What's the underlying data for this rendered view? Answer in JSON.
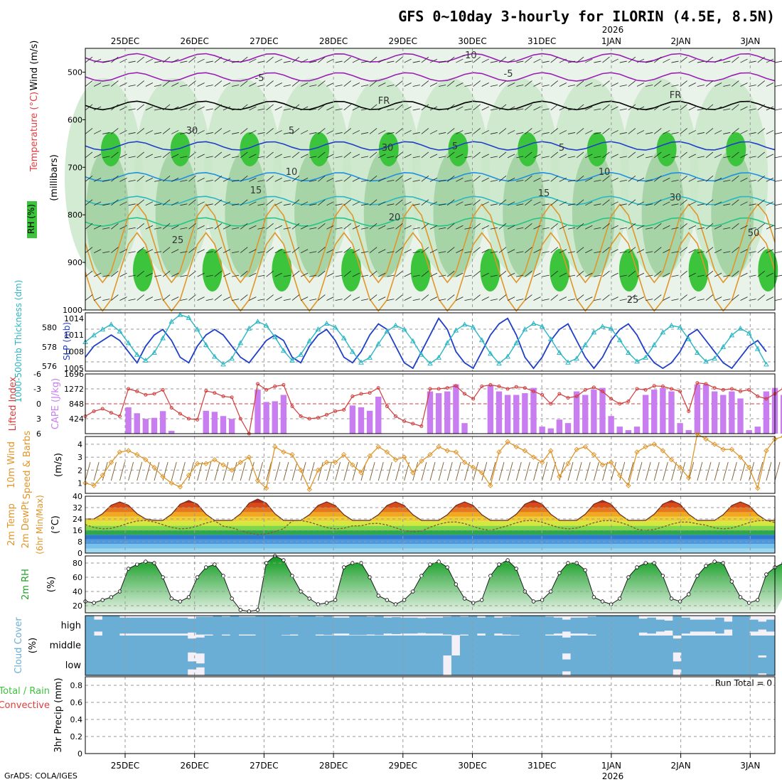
{
  "header": {
    "title": "GFS 0~10day 3-hourly for ILORIN (4.5E, 8.5N)",
    "year_label": "2026",
    "credit": "GrADS: COLA/IGES"
  },
  "dates": [
    "25DEC",
    "26DEC",
    "27DEC",
    "28DEC",
    "29DEC",
    "30DEC",
    "31DEC",
    "1JAN",
    "2JAN",
    "3JAN"
  ],
  "colors": {
    "grid": "#9a9a9a",
    "rh_green": "#3cc43c",
    "slp": "#1f3fc8",
    "thickness": "#2ab6c4",
    "lifted": "#d23c3c",
    "cape": "#c87ef0",
    "wind10m": "#e0962a",
    "dewpt": "#8a5a3c",
    "cloud": "#6aaed6",
    "precip_total": "#3cc43c",
    "precip_conv": "#e03c3c"
  },
  "chart_data": [
    {
      "panel": "upper-air",
      "type": "contour",
      "ylabel_parts": [
        "RH (%)",
        "Temperature (°C)",
        "Wind (m/s)"
      ],
      "ylabel_sub": "(millibars)",
      "yticks": [
        "500",
        "600",
        "700",
        "800",
        "900",
        "1000"
      ],
      "ylim": [
        1000,
        450
      ],
      "temp_contour_labels": [
        "-10",
        "-5",
        "FR",
        "-5",
        "FR",
        "5",
        "5",
        "5",
        "10",
        "10",
        "15",
        "15",
        "20",
        "25",
        "25",
        "30",
        "30",
        "30",
        "50"
      ],
      "isotherms_c": [
        -10,
        -5,
        0,
        5,
        10,
        15,
        20,
        25,
        30
      ]
    },
    {
      "panel": "slp-thickness",
      "type": "line",
      "ylabel_left": "1000-500mb Thickness (dm)",
      "ylabel_right": "SLP (mb)",
      "yticks_left": [
        "580",
        "578",
        "576"
      ],
      "yticks_right": [
        "1014",
        "1011",
        "1008",
        "1005"
      ],
      "ylim_slp": [
        1004.5,
        1015
      ],
      "ylim_thickness": [
        575.5,
        581.5
      ],
      "slp": [
        1007,
        1009,
        1010,
        1011,
        1010,
        1008,
        1006,
        1009,
        1011,
        1012,
        1010,
        1007,
        1006,
        1009,
        1011,
        1012,
        1011,
        1009,
        1007,
        1006,
        1008,
        1010,
        1011,
        1010,
        1007,
        1006,
        1009,
        1011,
        1012,
        1010,
        1007,
        1006,
        1008,
        1011,
        1013,
        1012,
        1009,
        1006,
        1005,
        1008,
        1011,
        1014,
        1012,
        1008,
        1006,
        1005,
        1008,
        1011,
        1013,
        1014,
        1011,
        1007,
        1005,
        1007,
        1010,
        1012,
        1013,
        1010,
        1007,
        1005,
        1007,
        1010,
        1012,
        1013,
        1011,
        1008,
        1006,
        1005,
        1006,
        1008,
        1011,
        1012,
        1010,
        1008,
        1006,
        1005,
        1007,
        1009,
        1010,
        1008
      ],
      "thickness": [
        578.5,
        579.2,
        579.8,
        580.3,
        579.6,
        578.4,
        577.2,
        576.6,
        577.4,
        578.9,
        580.6,
        581.3,
        581.0,
        579.8,
        578.2,
        577.0,
        576.2,
        576.8,
        578.4,
        579.9,
        580.6,
        580.2,
        579.0,
        577.6,
        576.6,
        577.2,
        578.6,
        579.8,
        580.4,
        580.0,
        578.9,
        577.5,
        576.4,
        576.9,
        578.3,
        579.6,
        580.2,
        579.8,
        578.6,
        577.2,
        576.3,
        576.9,
        578.4,
        579.7,
        580.3,
        580.0,
        578.7,
        577.3,
        576.3,
        577.0,
        578.4,
        579.8,
        580.4,
        580.1,
        578.8,
        577.4,
        576.4,
        576.8,
        578.2,
        579.5,
        580.1,
        579.9,
        578.7,
        577.4,
        576.5,
        576.9,
        578.2,
        579.5,
        580.2,
        580.0,
        578.8,
        577.4,
        576.5,
        576.8,
        578.0,
        579.2,
        579.9,
        579.4,
        577.8,
        576.2
      ]
    },
    {
      "panel": "cape-lifted-index",
      "type": "bar",
      "ylabel_left": "Lifted Index",
      "ylabel_right": "CAPE (J/kg)",
      "yticks_left": [
        "-6",
        "-3",
        "0",
        "3",
        "6"
      ],
      "yticks_right": [
        "1696",
        "1272",
        "848",
        "424"
      ],
      "ylim_cape": [
        0,
        1696
      ],
      "ylim_li": [
        6,
        -6
      ],
      "cape": [
        0,
        0,
        0,
        0,
        0,
        750,
        580,
        420,
        450,
        640,
        80,
        0,
        0,
        0,
        650,
        620,
        500,
        420,
        0,
        0,
        1250,
        900,
        920,
        1100,
        0,
        0,
        0,
        0,
        0,
        0,
        0,
        800,
        750,
        650,
        1050,
        0,
        0,
        0,
        0,
        0,
        1200,
        1150,
        1200,
        1400,
        300,
        0,
        0,
        1380,
        1200,
        1100,
        1100,
        1150,
        1300,
        200,
        150,
        400,
        300,
        1200,
        1100,
        1250,
        1300,
        500,
        200,
        100,
        200,
        1100,
        1250,
        1300,
        1200,
        300,
        100,
        1400,
        1400,
        1200,
        1100,
        1200,
        1000,
        100,
        200,
        1200,
        1300,
        1100,
        900
      ],
      "lifted_index": [
        2.5,
        1.5,
        1.0,
        1.8,
        2.5,
        -3.0,
        -2.5,
        -1.8,
        -2.0,
        -2.8,
        0.8,
        2.0,
        3.0,
        3.2,
        -2.6,
        -2.2,
        -1.5,
        -1.3,
        3.0,
        6.0,
        -4.0,
        -2.8,
        -3.5,
        -3.8,
        0.5,
        2.5,
        3.0,
        2.8,
        2.2,
        1.5,
        1.2,
        -1.5,
        -2.0,
        -2.2,
        -3.2,
        0.5,
        2.5,
        3.5,
        4.0,
        4.5,
        -3.0,
        -3.0,
        -3.2,
        -3.6,
        -2.0,
        -1.0,
        -3.5,
        -3.8,
        -3.5,
        -3.0,
        -3.4,
        -3.2,
        -2.5,
        -1.8,
        0.0,
        -2.0,
        -1.2,
        -1.5,
        -2.8,
        -3.3,
        -2.5,
        -1.0,
        0.0,
        -0.5,
        -3.0,
        -2.8,
        -3.6,
        -3.5,
        -3.0,
        -2.5,
        1.5,
        -4.2,
        -4.0,
        -3.2,
        -2.8,
        -3.0,
        -2.5,
        -2.8,
        -1.5,
        -1.0,
        -2.0,
        -3.2,
        -2.8,
        -2.0,
        -1.2
      ]
    },
    {
      "panel": "wind-10m",
      "type": "line",
      "ylabel_left": "10m Wind",
      "ylabel_mid": "Speed & Barbs",
      "ylabel_right": "(m/s)",
      "yticks": [
        "4",
        "3",
        "2",
        "1"
      ],
      "ylim": [
        0.2,
        4.6
      ],
      "speed": [
        1.0,
        0.8,
        1.6,
        2.6,
        3.4,
        3.5,
        3.2,
        2.8,
        2.2,
        1.5,
        1.0,
        0.7,
        1.6,
        2.5,
        2.5,
        2.8,
        2.4,
        2.0,
        2.6,
        3.0,
        1.2,
        0.6,
        3.8,
        3.4,
        3.2,
        2.0,
        0.5,
        2.0,
        2.6,
        2.6,
        3.2,
        2.4,
        1.8,
        3.1,
        3.8,
        3.4,
        2.8,
        3.0,
        1.8,
        2.7,
        3.2,
        3.8,
        3.5,
        3.4,
        2.6,
        2.2,
        1.8,
        0.8,
        3.4,
        4.2,
        3.8,
        3.5,
        3.0,
        2.6,
        3.5,
        1.5,
        2.5,
        3.6,
        3.8,
        3.2,
        2.4,
        2.6,
        1.6,
        0.8,
        3.4,
        3.8,
        4.0,
        3.5,
        2.8,
        2.2,
        1.4,
        4.8,
        4.4,
        4.0,
        3.6,
        3.6,
        3.0,
        2.2,
        0.6,
        3.5,
        4.4,
        4.6,
        4.2,
        3.8
      ]
    },
    {
      "panel": "temperature-dewpoint",
      "type": "area",
      "ylabel": "2m Temp / 2m DewPt (6hr Min/Max) (°C)",
      "ylabel_parts": [
        "2m Temp",
        "2m DewPt",
        "(6hr Min/Max)",
        "(°C)"
      ],
      "yticks": [
        "40",
        "32",
        "24",
        "16",
        "8",
        "0"
      ],
      "ylim": [
        0,
        40
      ],
      "temp_max_c": [
        36,
        37,
        38,
        36,
        36,
        36,
        37,
        37,
        37,
        36
      ],
      "temp_min_c": [
        24,
        23,
        23,
        23,
        23,
        23,
        23,
        23,
        23,
        23
      ],
      "dewpoint_c": [
        20,
        20,
        16,
        20,
        18,
        19,
        20,
        20,
        19,
        20
      ]
    },
    {
      "panel": "rh-2m",
      "type": "area",
      "ylabel": "2m RH",
      "ylabel_unit": "(%)",
      "yticks": [
        "80",
        "60",
        "40",
        "20"
      ],
      "ylim": [
        10,
        90
      ],
      "rh": [
        26,
        24,
        28,
        32,
        40,
        72,
        78,
        82,
        80,
        60,
        30,
        26,
        32,
        60,
        74,
        78,
        62,
        30,
        14,
        12,
        14,
        80,
        90,
        84,
        62,
        40,
        30,
        22,
        24,
        28,
        74,
        80,
        80,
        60,
        34,
        28,
        22,
        28,
        40,
        62,
        78,
        82,
        74,
        50,
        30,
        24,
        28,
        62,
        78,
        84,
        72,
        40,
        26,
        28,
        40,
        66,
        80,
        80,
        70,
        32,
        26,
        22,
        30,
        60,
        74,
        80,
        80,
        62,
        30,
        26,
        36,
        62,
        76,
        82,
        80,
        54,
        32,
        24,
        28,
        64,
        74,
        80,
        82,
        80
      ]
    },
    {
      "panel": "cloud-cover",
      "type": "heatmap",
      "ylabel": "Cloud Cover",
      "ylabel_unit": "(%)",
      "rows": [
        "high",
        "middle",
        "low"
      ],
      "high_pct": [
        100,
        60,
        100,
        100,
        80,
        80,
        80,
        80,
        80,
        80,
        80,
        80,
        70,
        90,
        90,
        100,
        90,
        100,
        90,
        90,
        100,
        100,
        100,
        95,
        90,
        100,
        100,
        90,
        95,
        80,
        80,
        95,
        95,
        90,
        95,
        80,
        85,
        80,
        80,
        75,
        80,
        80,
        90,
        95,
        90,
        100,
        80,
        100,
        80,
        90,
        95,
        100,
        100,
        100,
        90,
        80,
        60,
        80,
        80,
        90,
        100,
        100,
        100,
        100,
        100,
        70,
        80,
        60,
        50,
        100,
        80,
        60,
        60,
        60,
        80,
        40,
        100,
        100,
        60,
        40,
        60,
        90
      ],
      "middle_pct": [
        100,
        100,
        100,
        100,
        100,
        100,
        100,
        100,
        100,
        100,
        100,
        100,
        70,
        80,
        100,
        100,
        100,
        100,
        100,
        100,
        100,
        100,
        100,
        100,
        100,
        100,
        100,
        100,
        100,
        100,
        100,
        100,
        100,
        100,
        100,
        100,
        100,
        100,
        100,
        100,
        100,
        100,
        100,
        0,
        100,
        100,
        100,
        100,
        100,
        100,
        100,
        100,
        100,
        100,
        100,
        100,
        80,
        100,
        100,
        100,
        100,
        100,
        100,
        100,
        100,
        100,
        100,
        100,
        100,
        70,
        100,
        100,
        100,
        100,
        100,
        100,
        100,
        100,
        100,
        100,
        100,
        100,
        100
      ],
      "low_pct": [
        100,
        100,
        100,
        100,
        100,
        100,
        100,
        100,
        100,
        100,
        100,
        100,
        40,
        20,
        100,
        100,
        100,
        100,
        100,
        100,
        100,
        100,
        100,
        100,
        100,
        100,
        100,
        100,
        100,
        100,
        100,
        100,
        100,
        100,
        100,
        100,
        100,
        100,
        100,
        100,
        100,
        100,
        0,
        100,
        100,
        100,
        100,
        100,
        100,
        100,
        100,
        100,
        100,
        100,
        100,
        100,
        60,
        100,
        100,
        100,
        100,
        100,
        100,
        100,
        100,
        100,
        100,
        100,
        100,
        40,
        100,
        100,
        100,
        100,
        100,
        100,
        100,
        100,
        100,
        80,
        100,
        100,
        100
      ]
    },
    {
      "panel": "precipitation",
      "type": "bar",
      "ylabel_parts": [
        "Total / Rain",
        "Convective",
        "3hr Precip (mm)"
      ],
      "yticks": [
        "0.8",
        "0.6",
        "0.4",
        "0.2",
        "0"
      ],
      "ylim": [
        0,
        0.9
      ],
      "run_total_label": "Run Total = 0",
      "total_mm": [],
      "convective_mm": []
    }
  ]
}
